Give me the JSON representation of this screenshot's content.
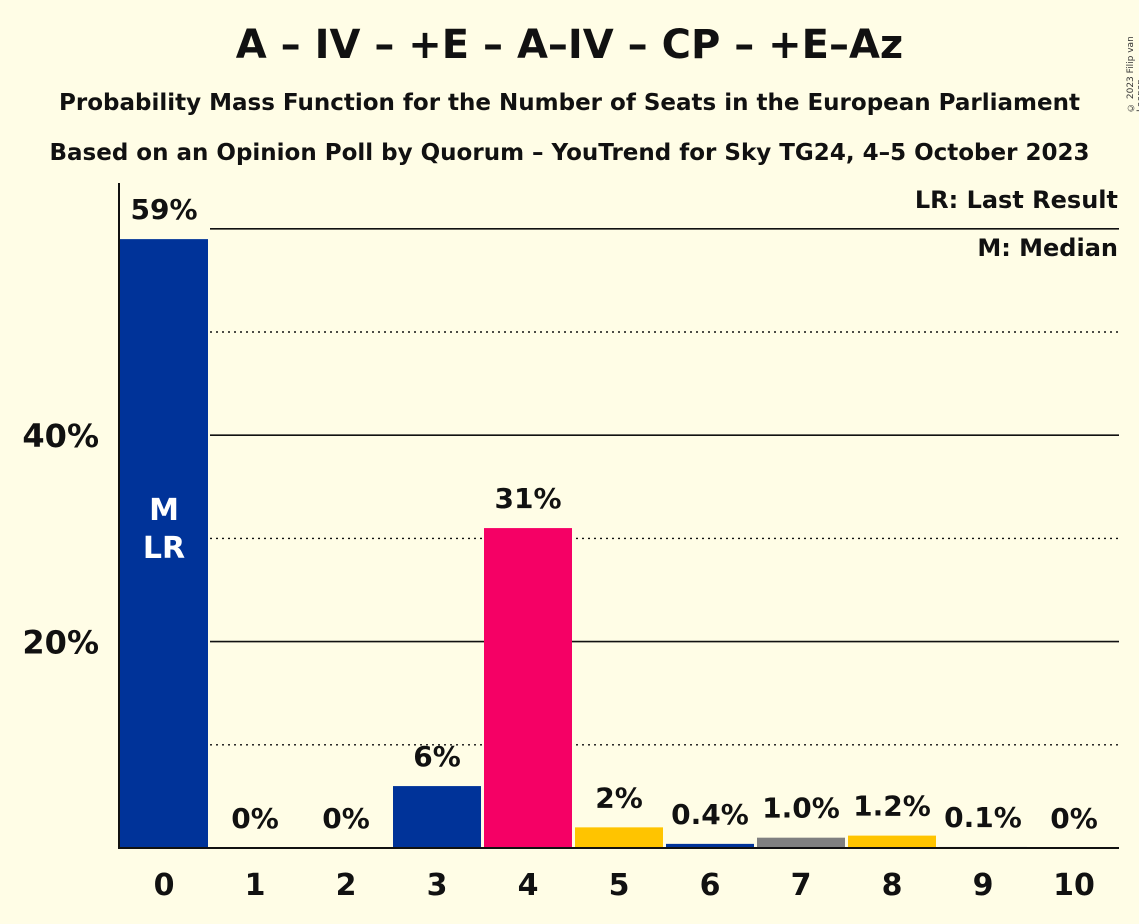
{
  "header": {
    "title": "A – IV – +E – A–IV – CP – +E–Az",
    "subtitle1": "Probability Mass Function for the Number of Seats in the European Parliament",
    "subtitle2": "Based on an Opinion Poll by Quorum – YouTrend for Sky TG24, 4–5 October 2023",
    "copyright": "© 2023 Filip van Laenen"
  },
  "legend": {
    "last_result": "LR: Last Result",
    "median": "M: Median"
  },
  "chart_data": {
    "type": "bar",
    "title": "A – IV – +E – A–IV – CP – +E–Az",
    "xlabel": "",
    "ylabel": "",
    "ylim": [
      0,
      65
    ],
    "grid": "solid lines at 20% intervals, dotted lines at 10% offsets",
    "legend_placement": "top-right",
    "categories": [
      "0",
      "1",
      "2",
      "3",
      "4",
      "5",
      "6",
      "7",
      "8",
      "9",
      "10"
    ],
    "values": [
      59,
      0,
      0,
      6,
      31,
      2,
      0.4,
      1.0,
      1.2,
      0.1,
      0
    ],
    "value_labels": [
      "59%",
      "0%",
      "0%",
      "6%",
      "31%",
      "2%",
      "0.4%",
      "1.0%",
      "1.2%",
      "0.1%",
      "0%"
    ],
    "bar_colors": [
      "#003399",
      "#003399",
      "#003399",
      "#003399",
      "#F50065",
      "#FFC400",
      "#003399",
      "#808080",
      "#FFC400",
      "#003399",
      "#003399"
    ],
    "y_ticks": [
      {
        "value": 20,
        "label": "20%"
      },
      {
        "value": 40,
        "label": "40%"
      }
    ],
    "bar_annotations": [
      {
        "category": "0",
        "lines": [
          "M",
          "LR"
        ]
      }
    ]
  }
}
